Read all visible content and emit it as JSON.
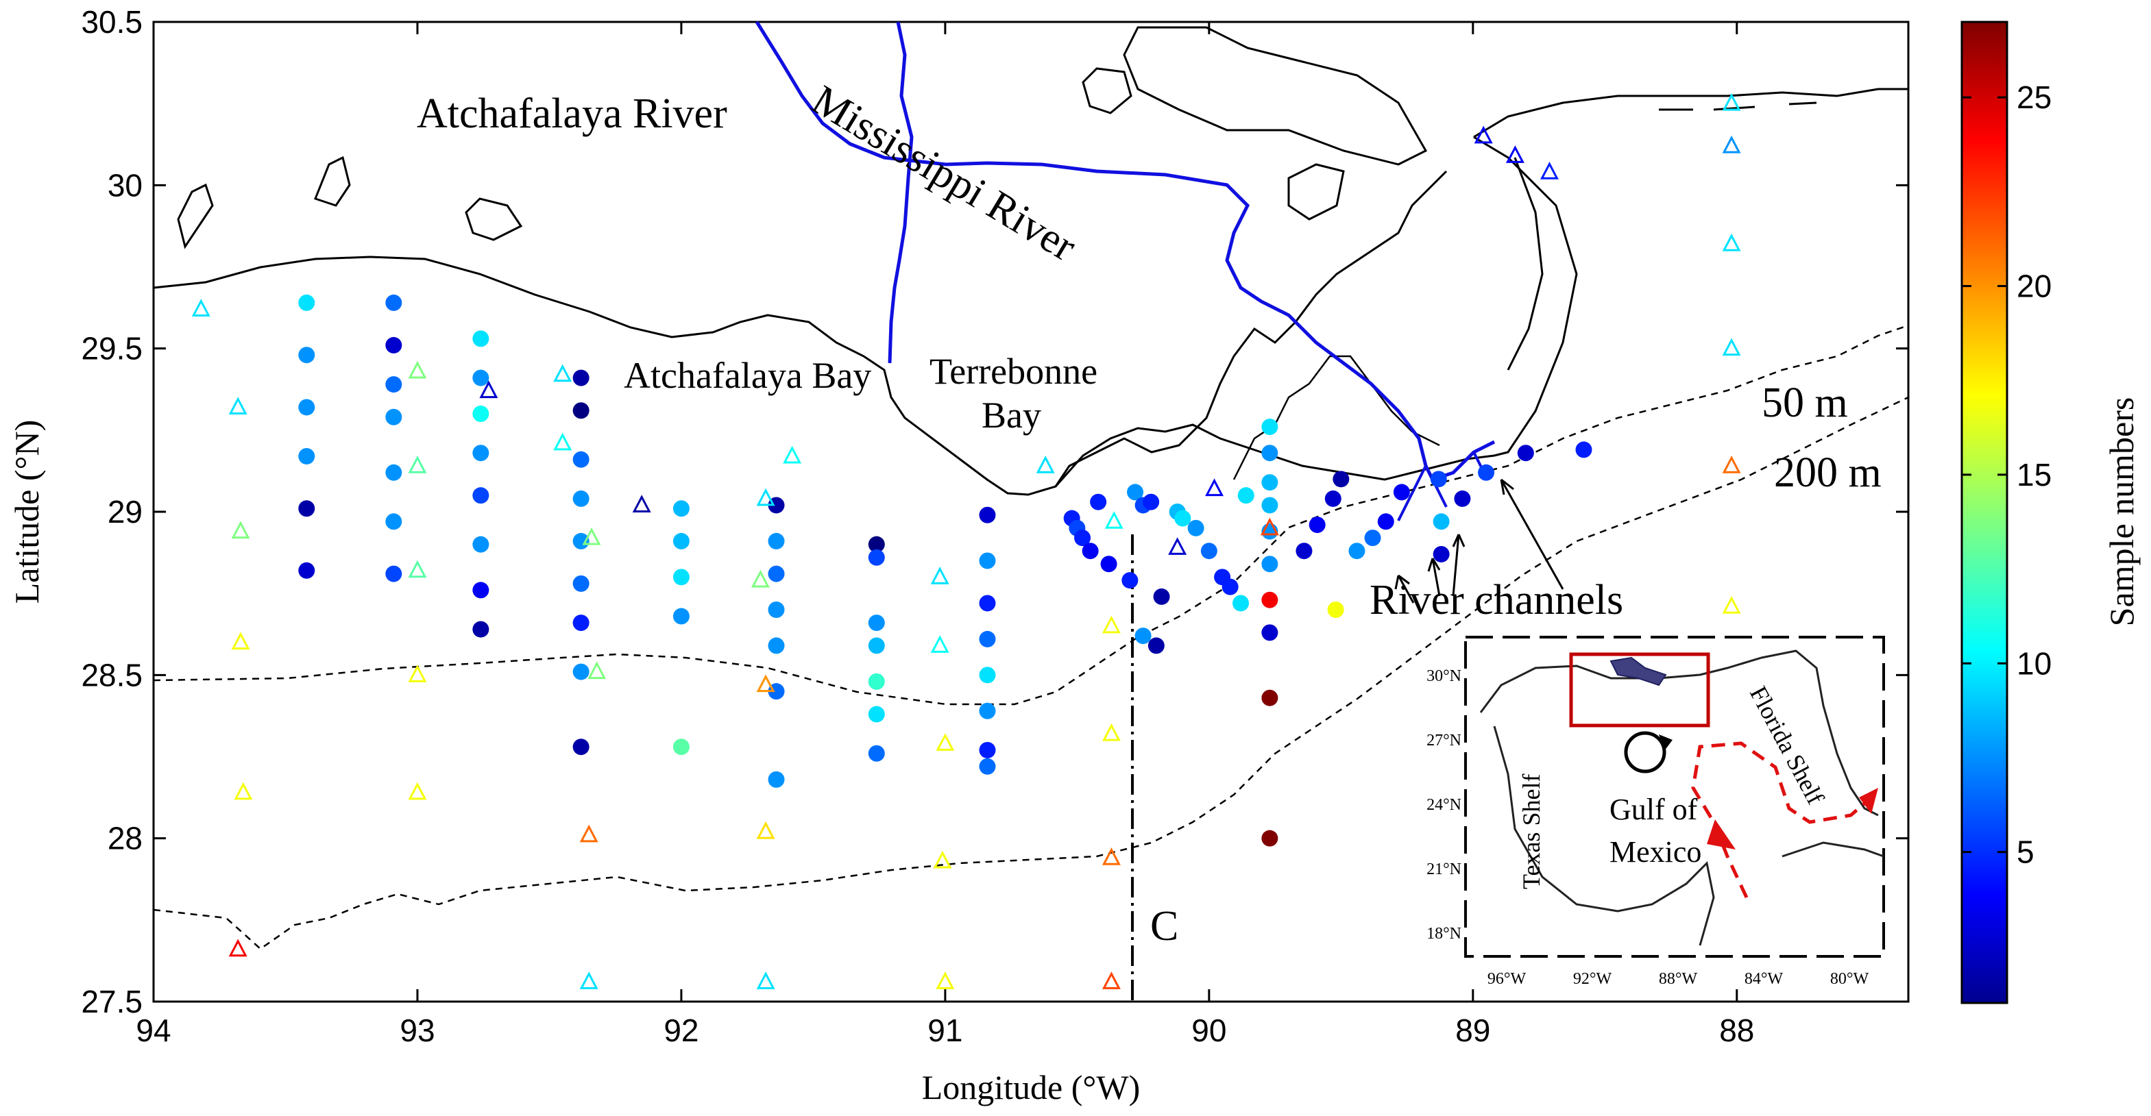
{
  "chart_data": {
    "type": "map",
    "axes": {
      "x_label": "Longitude (°W)",
      "y_label": "Latitude (°N)",
      "x_ticks": [
        "94",
        "93",
        "92",
        "91",
        "90",
        "89",
        "88"
      ],
      "y_ticks": [
        "30.5",
        "30",
        "29.5",
        "29",
        "28.5",
        "28",
        "27.5"
      ],
      "x_range": [
        94,
        87.35
      ],
      "y_range": [
        27.5,
        30.5
      ]
    },
    "colorbar": {
      "label": "Sample numbers",
      "ticks": [
        "5",
        "10",
        "15",
        "20",
        "25"
      ],
      "range": [
        1,
        27
      ],
      "colormap": "jet"
    },
    "labels": {
      "atchafalaya_river": "Atchafalaya River",
      "mississippi_river": "Mississippi River",
      "atchafalaya_bay": "Atchafalaya Bay",
      "terrebonne_bay_1": "Terrebonne",
      "terrebonne_bay_2": "Bay",
      "isobath_50": "50 m",
      "isobath_200": "200 m",
      "river_channels": "River channels",
      "transect": "C"
    },
    "inset": {
      "x_ticks": [
        "96°W",
        "92°W",
        "88°W",
        "84°W",
        "80°W"
      ],
      "y_ticks": [
        "30°N",
        "27°N",
        "24°N",
        "21°N",
        "18°N"
      ],
      "gulf_label_1": "Gulf of",
      "gulf_label_2": "Mexico",
      "texas_shelf": "Texas Shelf",
      "florida_shelf": "Florida Shelf"
    },
    "stations_filled": [
      [
        93.42,
        29.64,
        10
      ],
      [
        93.42,
        29.48,
        8
      ],
      [
        93.42,
        29.32,
        8
      ],
      [
        93.42,
        29.17,
        8
      ],
      [
        93.42,
        29.01,
        2
      ],
      [
        93.42,
        28.82,
        3
      ],
      [
        93.09,
        29.64,
        7
      ],
      [
        93.09,
        29.51,
        3
      ],
      [
        93.09,
        29.39,
        7
      ],
      [
        93.09,
        29.29,
        8
      ],
      [
        93.09,
        29.12,
        8
      ],
      [
        93.09,
        28.97,
        8
      ],
      [
        93.09,
        28.81,
        6
      ],
      [
        92.76,
        29.53,
        10
      ],
      [
        92.76,
        29.41,
        8
      ],
      [
        92.76,
        29.3,
        11
      ],
      [
        92.76,
        29.18,
        8
      ],
      [
        92.76,
        29.05,
        6
      ],
      [
        92.76,
        28.9,
        8
      ],
      [
        92.76,
        28.76,
        4
      ],
      [
        92.76,
        28.64,
        2
      ],
      [
        92.38,
        29.41,
        2
      ],
      [
        92.38,
        29.31,
        1
      ],
      [
        92.38,
        29.16,
        7
      ],
      [
        92.38,
        29.04,
        8
      ],
      [
        92.38,
        28.91,
        8
      ],
      [
        92.38,
        28.78,
        7
      ],
      [
        92.38,
        28.66,
        5
      ],
      [
        92.38,
        28.51,
        8
      ],
      [
        92.38,
        28.28,
        2
      ],
      [
        92.0,
        29.01,
        9
      ],
      [
        92.0,
        28.91,
        9
      ],
      [
        92.0,
        28.8,
        10
      ],
      [
        92.0,
        28.68,
        8
      ],
      [
        92.0,
        28.28,
        13
      ],
      [
        91.64,
        29.02,
        2
      ],
      [
        91.64,
        28.91,
        8
      ],
      [
        91.64,
        28.81,
        7
      ],
      [
        91.64,
        28.7,
        8
      ],
      [
        91.64,
        28.59,
        8
      ],
      [
        91.64,
        28.45,
        7
      ],
      [
        91.64,
        28.18,
        8
      ],
      [
        91.26,
        28.9,
        1
      ],
      [
        91.26,
        28.86,
        6
      ],
      [
        91.26,
        28.66,
        8
      ],
      [
        91.26,
        28.59,
        9
      ],
      [
        91.26,
        28.48,
        12
      ],
      [
        91.26,
        28.38,
        10
      ],
      [
        91.26,
        28.26,
        7
      ],
      [
        90.84,
        28.99,
        3
      ],
      [
        90.84,
        28.85,
        8
      ],
      [
        90.84,
        28.72,
        5
      ],
      [
        90.84,
        28.61,
        7
      ],
      [
        90.84,
        28.5,
        10
      ],
      [
        90.84,
        28.39,
        8
      ],
      [
        90.84,
        28.27,
        5
      ],
      [
        90.84,
        28.22,
        7
      ],
      [
        90.52,
        28.98,
        5
      ],
      [
        90.5,
        28.95,
        6
      ],
      [
        90.48,
        28.92,
        5
      ],
      [
        90.45,
        28.88,
        4
      ],
      [
        90.42,
        29.03,
        5
      ],
      [
        90.38,
        28.84,
        4
      ],
      [
        90.3,
        28.79,
        5
      ],
      [
        90.28,
        29.06,
        8
      ],
      [
        90.25,
        29.02,
        6
      ],
      [
        90.22,
        29.03,
        5
      ],
      [
        90.18,
        28.74,
        2
      ],
      [
        90.2,
        28.59,
        2
      ],
      [
        90.25,
        28.62,
        8
      ],
      [
        90.12,
        29.0,
        9
      ],
      [
        90.1,
        28.98,
        10
      ],
      [
        90.05,
        28.95,
        8
      ],
      [
        90.0,
        28.88,
        7
      ],
      [
        89.95,
        28.8,
        5
      ],
      [
        89.92,
        28.77,
        5
      ],
      [
        89.88,
        28.72,
        10
      ],
      [
        89.86,
        29.05,
        10
      ],
      [
        89.77,
        29.26,
        10
      ],
      [
        89.77,
        29.18,
        8
      ],
      [
        89.77,
        29.09,
        9
      ],
      [
        89.77,
        29.02,
        9
      ],
      [
        89.77,
        28.94,
        8
      ],
      [
        89.77,
        28.84,
        8
      ],
      [
        89.77,
        28.73,
        24
      ],
      [
        89.77,
        28.63,
        3
      ],
      [
        89.77,
        28.43,
        27
      ],
      [
        89.77,
        28.0,
        27
      ],
      [
        89.52,
        28.7,
        17
      ],
      [
        89.64,
        28.88,
        3
      ],
      [
        89.59,
        28.96,
        4
      ],
      [
        89.53,
        29.04,
        3
      ],
      [
        89.5,
        29.1,
        2
      ],
      [
        89.44,
        28.88,
        8
      ],
      [
        89.38,
        28.92,
        7
      ],
      [
        89.33,
        28.97,
        4
      ],
      [
        89.27,
        29.06,
        4
      ],
      [
        89.13,
        29.1,
        6
      ],
      [
        89.12,
        28.87,
        3
      ],
      [
        89.12,
        28.97,
        9
      ],
      [
        89.04,
        29.04,
        3
      ],
      [
        88.95,
        29.12,
        6
      ],
      [
        88.8,
        29.18,
        3
      ],
      [
        88.58,
        29.19,
        5
      ]
    ],
    "stations_open": [
      [
        93.82,
        29.62,
        10
      ],
      [
        93.68,
        29.32,
        10
      ],
      [
        93.67,
        28.94,
        14
      ],
      [
        93.67,
        28.6,
        17
      ],
      [
        93.66,
        28.14,
        17
      ],
      [
        93.68,
        27.66,
        24
      ],
      [
        93.0,
        29.43,
        14
      ],
      [
        93.0,
        29.14,
        13
      ],
      [
        93.0,
        28.82,
        13
      ],
      [
        93.0,
        28.5,
        17
      ],
      [
        93.0,
        28.14,
        17
      ],
      [
        92.73,
        29.37,
        3
      ],
      [
        92.45,
        29.42,
        10
      ],
      [
        92.45,
        29.21,
        11
      ],
      [
        92.34,
        28.92,
        14
      ],
      [
        92.32,
        28.51,
        14
      ],
      [
        92.35,
        28.01,
        21
      ],
      [
        92.35,
        27.56,
        10
      ],
      [
        92.15,
        29.02,
        2
      ],
      [
        91.68,
        29.04,
        10
      ],
      [
        91.7,
        28.79,
        14
      ],
      [
        91.68,
        28.47,
        20
      ],
      [
        91.68,
        28.02,
        18
      ],
      [
        91.68,
        27.56,
        10
      ],
      [
        91.58,
        29.17,
        11
      ],
      [
        91.02,
        28.8,
        10
      ],
      [
        91.02,
        28.59,
        11
      ],
      [
        91.0,
        28.29,
        17
      ],
      [
        91.01,
        27.93,
        17
      ],
      [
        91.0,
        27.56,
        17
      ],
      [
        90.62,
        29.14,
        10
      ],
      [
        90.36,
        28.97,
        11
      ],
      [
        90.37,
        28.65,
        17
      ],
      [
        90.37,
        28.32,
        17
      ],
      [
        90.37,
        27.94,
        21
      ],
      [
        90.37,
        27.56,
        22
      ],
      [
        90.12,
        28.89,
        3
      ],
      [
        89.98,
        29.07,
        4
      ],
      [
        89.77,
        28.95,
        22
      ],
      [
        88.96,
        30.15,
        4
      ],
      [
        88.84,
        30.09,
        4
      ],
      [
        88.71,
        30.04,
        5
      ],
      [
        88.02,
        30.25,
        10
      ],
      [
        88.02,
        30.12,
        8
      ],
      [
        88.02,
        29.82,
        10
      ],
      [
        88.02,
        29.5,
        10
      ],
      [
        88.02,
        29.14,
        21
      ],
      [
        88.02,
        28.71,
        17
      ]
    ]
  }
}
